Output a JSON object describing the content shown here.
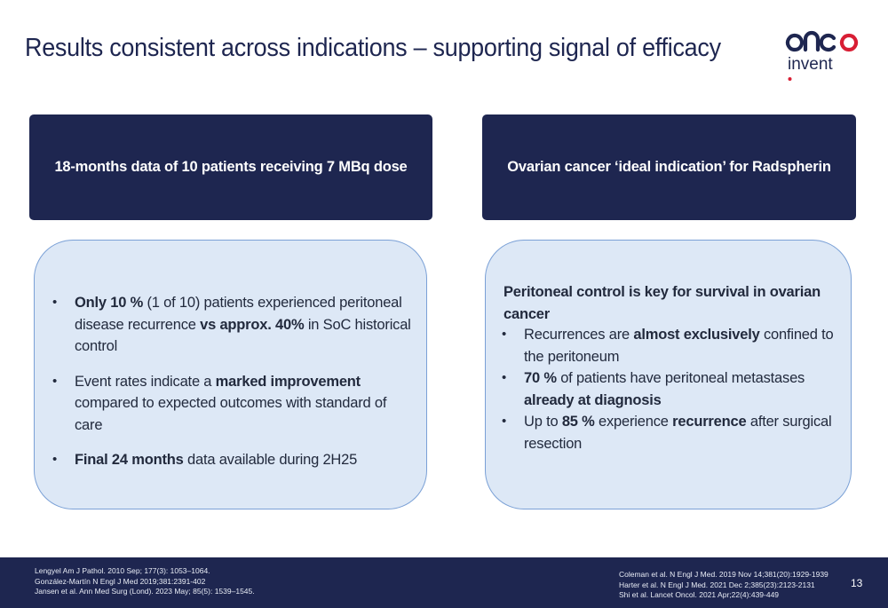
{
  "title": "Results consistent across indications – supporting signal of efficacy",
  "logo": {
    "line1": "onco",
    "line2": "invent"
  },
  "colors": {
    "navy": "#1e2650",
    "box_fill": "#dde8f6",
    "box_border": "#7aa0d6",
    "logo_red": "#d81e34"
  },
  "left_panel": {
    "header": "18-months data of 10 patients receiving 7 MBq dose",
    "bullets": [
      [
        {
          "text": "Only 10 %",
          "bold": true
        },
        {
          "text": " (1 of 10) patients experienced peritoneal disease recurrence ",
          "bold": false
        },
        {
          "text": "vs approx. 40%",
          "bold": true
        },
        {
          "text": " in SoC historical control",
          "bold": false
        }
      ],
      [
        {
          "text": "Event rates indicate a ",
          "bold": false
        },
        {
          "text": "marked improvement",
          "bold": true
        },
        {
          "text": " compared to expected outcomes with standard of care",
          "bold": false
        }
      ],
      [
        {
          "text": "Final 24 months",
          "bold": true
        },
        {
          "text": " data available during 2H25",
          "bold": false
        }
      ]
    ]
  },
  "right_panel": {
    "header": "Ovarian cancer ‘ideal indication’ for Radspherin",
    "heading": "Peritoneal control is key for survival in ovarian cancer",
    "bullets": [
      [
        {
          "text": "Recurrences are ",
          "bold": false
        },
        {
          "text": "almost exclusively",
          "bold": true
        },
        {
          "text": " confined to the peritoneum",
          "bold": false
        }
      ],
      [
        {
          "text": "70 %",
          "bold": true
        },
        {
          "text": " of patients have peritoneal metastases ",
          "bold": false
        },
        {
          "text": "already at diagnosis",
          "bold": true
        }
      ],
      [
        {
          "text": "Up to ",
          "bold": false
        },
        {
          "text": "85 %",
          "bold": true
        },
        {
          "text": " experience ",
          "bold": false
        },
        {
          "text": "recurrence",
          "bold": true
        },
        {
          "text": " after surgical resection",
          "bold": false
        }
      ]
    ]
  },
  "footer": {
    "refs_left": [
      "Lengyel Am J Pathol. 2010 Sep; 177(3): 1053–1064.",
      "González-Martín N Engl J Med 2019;381:2391-402",
      "Jansen et al. Ann Med Surg (Lond). 2023 May; 85(5): 1539–1545."
    ],
    "refs_right": [
      "Coleman et al. N Engl J Med. 2019 Nov 14;381(20):1929-1939",
      "Harter et al. N Engl J Med. 2021 Dec 2;385(23):2123-2131",
      "Shi et al. Lancet Oncol. 2021 Apr;22(4):439-449"
    ],
    "page_number": "13"
  }
}
